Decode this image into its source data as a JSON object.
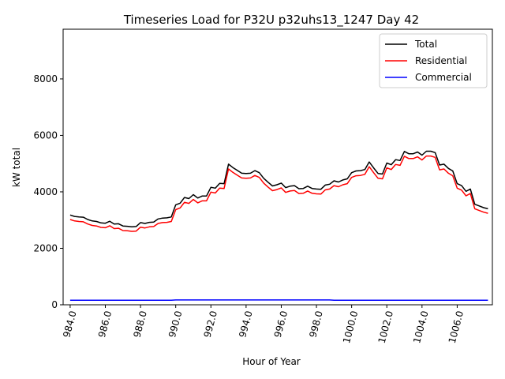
{
  "chart_data": {
    "type": "line",
    "title": "Timeseries Load for P32U p32uhs13_1247  Day 42",
    "xlabel": "Hour of Year",
    "ylabel": "kW total",
    "xlim": [
      983.6,
      1008.0
    ],
    "ylim": [
      0,
      9760
    ],
    "x_ticks": [
      984,
      986,
      988,
      990,
      992,
      994,
      996,
      998,
      1000,
      1002,
      1004,
      1006
    ],
    "x_tick_labels": [
      "984.0",
      "986.0",
      "988.0",
      "990.0",
      "992.0",
      "994.0",
      "996.0",
      "998.0",
      "1000.0",
      "1002.0",
      "1004.0",
      "1006.0"
    ],
    "y_ticks": [
      0,
      2000,
      4000,
      6000,
      8000
    ],
    "y_tick_labels": [
      "0",
      "2000",
      "4000",
      "6000",
      "8000"
    ],
    "grid": false,
    "legend_position": "top-right",
    "x": [
      984.0,
      984.25,
      984.5,
      984.75,
      985.0,
      985.25,
      985.5,
      985.75,
      986.0,
      986.25,
      986.5,
      986.75,
      987.0,
      987.25,
      987.5,
      987.75,
      988.0,
      988.25,
      988.5,
      988.75,
      989.0,
      989.25,
      989.5,
      989.75,
      990.0,
      990.25,
      990.5,
      990.75,
      991.0,
      991.25,
      991.5,
      991.75,
      992.0,
      992.25,
      992.5,
      992.75,
      993.0,
      993.25,
      993.5,
      993.75,
      994.0,
      994.25,
      994.5,
      994.75,
      995.0,
      995.25,
      995.5,
      995.75,
      996.0,
      996.25,
      996.5,
      996.75,
      997.0,
      997.25,
      997.5,
      997.75,
      998.0,
      998.25,
      998.5,
      998.75,
      999.0,
      999.25,
      999.5,
      999.75,
      1000.0,
      1000.25,
      1000.5,
      1000.75,
      1001.0,
      1001.25,
      1001.5,
      1001.75,
      1002.0,
      1002.25,
      1002.5,
      1002.75,
      1003.0,
      1003.25,
      1003.5,
      1003.75,
      1004.0,
      1004.25,
      1004.5,
      1004.75,
      1005.0,
      1005.25,
      1005.5,
      1005.75,
      1006.0,
      1006.25,
      1006.5,
      1006.75,
      1007.0,
      1007.25,
      1007.5,
      1007.75
    ],
    "series": [
      {
        "name": "Total",
        "color": "#000000",
        "values": [
          3180,
          3130,
          3110,
          3100,
          3020,
          2970,
          2950,
          2900,
          2890,
          2960,
          2860,
          2870,
          2790,
          2780,
          2760,
          2770,
          2910,
          2880,
          2920,
          2930,
          3040,
          3070,
          3080,
          3110,
          3540,
          3600,
          3800,
          3760,
          3900,
          3780,
          3850,
          3850,
          4160,
          4130,
          4300,
          4290,
          4980,
          4860,
          4760,
          4660,
          4650,
          4660,
          4750,
          4680,
          4480,
          4340,
          4210,
          4250,
          4310,
          4150,
          4200,
          4220,
          4110,
          4120,
          4200,
          4120,
          4100,
          4090,
          4240,
          4270,
          4390,
          4350,
          4420,
          4460,
          4680,
          4740,
          4750,
          4790,
          5060,
          4850,
          4650,
          4630,
          5020,
          4960,
          5140,
          5110,
          5430,
          5350,
          5350,
          5410,
          5300,
          5440,
          5440,
          5390,
          4950,
          4980,
          4830,
          4740,
          4290,
          4220,
          4020,
          4100,
          3560,
          3500,
          3440,
          3400
        ]
      },
      {
        "name": "Residential",
        "color": "#ff0000",
        "values": [
          3020,
          2970,
          2950,
          2940,
          2860,
          2810,
          2790,
          2740,
          2730,
          2800,
          2700,
          2710,
          2630,
          2620,
          2600,
          2610,
          2750,
          2720,
          2760,
          2770,
          2880,
          2910,
          2920,
          2950,
          3370,
          3430,
          3630,
          3590,
          3730,
          3610,
          3680,
          3680,
          3990,
          3960,
          4130,
          4120,
          4810,
          4690,
          4590,
          4490,
          4480,
          4490,
          4580,
          4510,
          4310,
          4170,
          4040,
          4080,
          4140,
          3980,
          4030,
          4050,
          3940,
          3950,
          4030,
          3950,
          3930,
          3920,
          4070,
          4100,
          4220,
          4180,
          4250,
          4290,
          4510,
          4570,
          4580,
          4620,
          4890,
          4680,
          4480,
          4460,
          4850,
          4790,
          4970,
          4940,
          5260,
          5180,
          5180,
          5240,
          5130,
          5270,
          5270,
          5220,
          4780,
          4810,
          4660,
          4570,
          4130,
          4060,
          3860,
          3940,
          3400,
          3340,
          3280,
          3240
        ]
      },
      {
        "name": "Commercial",
        "color": "#0000ff",
        "values": [
          160,
          160,
          160,
          160,
          160,
          160,
          160,
          160,
          160,
          160,
          160,
          160,
          160,
          160,
          160,
          160,
          160,
          160,
          160,
          160,
          160,
          160,
          160,
          160,
          170,
          170,
          170,
          170,
          170,
          170,
          170,
          170,
          170,
          170,
          170,
          170,
          170,
          170,
          170,
          170,
          170,
          170,
          170,
          170,
          170,
          170,
          170,
          170,
          170,
          170,
          170,
          170,
          170,
          170,
          170,
          170,
          170,
          170,
          170,
          170,
          160,
          160,
          160,
          160,
          160,
          160,
          160,
          160,
          160,
          160,
          160,
          160,
          160,
          160,
          160,
          160,
          160,
          160,
          160,
          160,
          160,
          160,
          160,
          160,
          160,
          160,
          160,
          160,
          160,
          160,
          160,
          160,
          160,
          160,
          160,
          160
        ]
      }
    ]
  }
}
